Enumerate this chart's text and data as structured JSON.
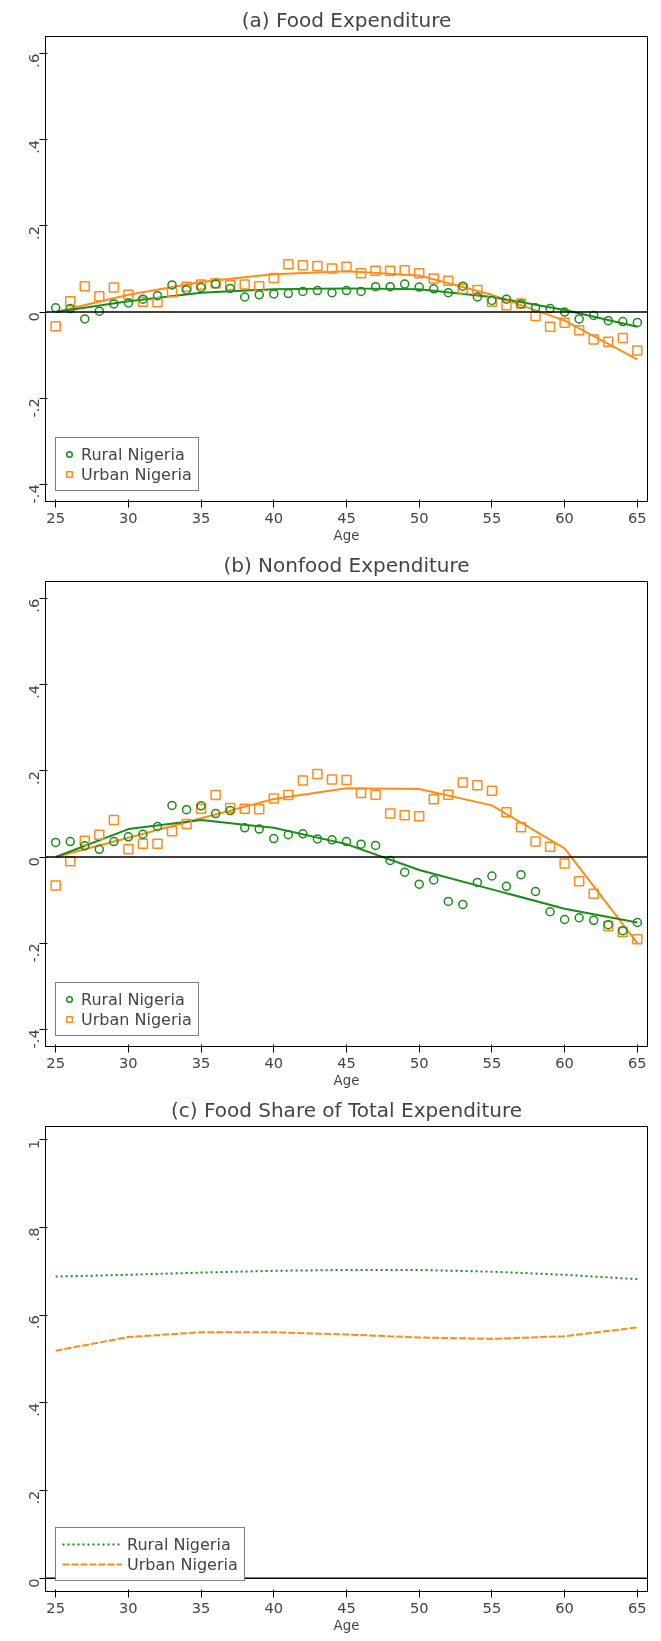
{
  "chart_data": [
    {
      "type": "scatter",
      "title": "(a) Food Expenditure",
      "xlabel": "Age",
      "xlim": [
        24.3,
        65.7
      ],
      "xticks": [
        25,
        30,
        35,
        40,
        45,
        50,
        55,
        60,
        65
      ],
      "ylim": [
        -0.44,
        0.64
      ],
      "yticks": [
        {
          "value": -0.4,
          "label": "-.4"
        },
        {
          "value": -0.2,
          "label": "-.2"
        },
        {
          "value": 0,
          "label": "0"
        },
        {
          "value": 0.2,
          "label": ".2"
        },
        {
          "value": 0.4,
          "label": ".4"
        },
        {
          "value": 0.6,
          "label": ".6"
        }
      ],
      "grid": false,
      "legend": "bottom left",
      "ref_lines": [
        {
          "axis": "y",
          "value": 0,
          "color": "#000000"
        }
      ],
      "x": [
        25,
        26,
        27,
        28,
        29,
        30,
        31,
        32,
        33,
        34,
        35,
        36,
        37,
        38,
        39,
        40,
        41,
        42,
        43,
        44,
        45,
        46,
        47,
        48,
        49,
        50,
        51,
        52,
        53,
        54,
        55,
        56,
        57,
        58,
        59,
        60,
        61,
        62,
        63,
        64,
        65
      ],
      "series": [
        {
          "name": "Rural Nigeria",
          "type": "scatter",
          "marker": "circle",
          "color": "#1a8c1a",
          "values": [
            0.01,
            0.008,
            -0.016,
            0.002,
            0.019,
            0.021,
            0.03,
            0.038,
            0.063,
            0.052,
            0.057,
            0.065,
            0.055,
            0.035,
            0.04,
            0.042,
            0.043,
            0.048,
            0.05,
            0.045,
            0.05,
            0.048,
            0.059,
            0.059,
            0.065,
            0.058,
            0.054,
            0.045,
            0.06,
            0.035,
            0.027,
            0.03,
            0.019,
            0.01,
            0.008,
            0.0,
            -0.016,
            -0.008,
            -0.02,
            -0.022,
            -0.024
          ]
        },
        {
          "name": "Urban Nigeria",
          "type": "scatter",
          "marker": "square",
          "color": "#ff8c1a",
          "values": [
            -0.033,
            0.025,
            0.06,
            0.037,
            0.057,
            0.04,
            0.024,
            0.023,
            0.046,
            0.059,
            0.064,
            0.067,
            0.063,
            0.064,
            0.06,
            0.079,
            0.111,
            0.109,
            0.107,
            0.101,
            0.105,
            0.09,
            0.096,
            0.096,
            0.097,
            0.09,
            0.078,
            0.073,
            0.054,
            0.051,
            0.024,
            0.016,
            0.02,
            -0.009,
            -0.034,
            -0.025,
            -0.042,
            -0.064,
            -0.069,
            -0.06,
            -0.089
          ]
        },
        {
          "type": "line",
          "color": "#1a8c1a",
          "x": [
            25,
            30,
            35,
            40,
            45,
            50,
            55,
            60,
            65
          ],
          "values": [
            0.0,
            0.025,
            0.045,
            0.053,
            0.055,
            0.053,
            0.035,
            0.005,
            -0.034
          ]
        },
        {
          "type": "line",
          "color": "#ff8c1a",
          "x": [
            25,
            30,
            35,
            40,
            45,
            50,
            55,
            60,
            65
          ],
          "values": [
            0.0,
            0.04,
            0.07,
            0.088,
            0.095,
            0.085,
            0.04,
            -0.02,
            -0.11
          ]
        }
      ]
    },
    {
      "type": "scatter",
      "title": "(b) Nonfood Expenditure",
      "xlabel": "Age",
      "xlim": [
        24.3,
        65.7
      ],
      "xticks": [
        25,
        30,
        35,
        40,
        45,
        50,
        55,
        60,
        65
      ],
      "ylim": [
        -0.44,
        0.64
      ],
      "yticks": [
        {
          "value": -0.4,
          "label": "-.4"
        },
        {
          "value": -0.2,
          "label": "-.2"
        },
        {
          "value": 0,
          "label": "0"
        },
        {
          "value": 0.2,
          "label": ".2"
        },
        {
          "value": 0.4,
          "label": ".4"
        },
        {
          "value": 0.6,
          "label": ".6"
        }
      ],
      "grid": false,
      "legend": "bottom left",
      "ref_lines": [
        {
          "axis": "y",
          "value": 0,
          "color": "#000000"
        }
      ],
      "x": [
        25,
        26,
        27,
        28,
        29,
        30,
        31,
        32,
        33,
        34,
        35,
        36,
        37,
        38,
        39,
        40,
        41,
        42,
        43,
        44,
        45,
        46,
        47,
        48,
        49,
        50,
        51,
        52,
        53,
        54,
        55,
        56,
        57,
        58,
        59,
        60,
        61,
        62,
        63,
        64,
        65
      ],
      "series": [
        {
          "name": "Rural Nigeria",
          "type": "scatter",
          "marker": "circle",
          "color": "#1a8c1a",
          "values": [
            0.034,
            0.036,
            0.026,
            0.018,
            0.036,
            0.047,
            0.053,
            0.071,
            0.12,
            0.11,
            0.119,
            0.101,
            0.108,
            0.068,
            0.065,
            0.043,
            0.052,
            0.054,
            0.042,
            0.04,
            0.036,
            0.03,
            0.027,
            -0.008,
            -0.035,
            -0.063,
            -0.053,
            -0.103,
            -0.11,
            -0.059,
            -0.044,
            -0.068,
            -0.041,
            -0.08,
            -0.127,
            -0.145,
            -0.141,
            -0.147,
            -0.157,
            -0.171,
            -0.152
          ]
        },
        {
          "name": "Urban Nigeria",
          "type": "scatter",
          "marker": "square",
          "color": "#ff8c1a",
          "values": [
            -0.066,
            -0.01,
            0.038,
            0.052,
            0.086,
            0.018,
            0.031,
            0.031,
            0.06,
            0.077,
            0.112,
            0.144,
            0.114,
            0.112,
            0.111,
            0.136,
            0.144,
            0.178,
            0.193,
            0.18,
            0.179,
            0.149,
            0.145,
            0.101,
            0.097,
            0.095,
            0.134,
            0.145,
            0.173,
            0.167,
            0.154,
            0.104,
            0.069,
            0.036,
            0.024,
            -0.015,
            -0.056,
            -0.085,
            -0.16,
            -0.174,
            -0.191
          ]
        },
        {
          "type": "line",
          "color": "#1a8c1a",
          "x": [
            25,
            30,
            35,
            40,
            45,
            50,
            55,
            60,
            65
          ],
          "values": [
            0.0,
            0.065,
            0.086,
            0.068,
            0.03,
            -0.03,
            -0.075,
            -0.12,
            -0.152
          ]
        },
        {
          "type": "line",
          "color": "#ff8c1a",
          "x": [
            25,
            30,
            35,
            40,
            45,
            50,
            55,
            60,
            65
          ],
          "values": [
            0.0,
            0.045,
            0.09,
            0.135,
            0.16,
            0.158,
            0.12,
            0.02,
            -0.2
          ]
        }
      ]
    },
    {
      "type": "line",
      "title": "(c) Food Share of Total Expenditure",
      "xlabel": "Age",
      "xlim": [
        24.3,
        65.7
      ],
      "xticks": [
        25,
        30,
        35,
        40,
        45,
        50,
        55,
        60,
        65
      ],
      "ylim": [
        -0.03,
        1.03
      ],
      "yticks": [
        {
          "value": 0,
          "label": "0"
        },
        {
          "value": 0.2,
          "label": ".2"
        },
        {
          "value": 0.4,
          "label": ".4"
        },
        {
          "value": 0.6,
          "label": ".6"
        },
        {
          "value": 0.8,
          "label": ".8"
        },
        1
      ],
      "grid": false,
      "legend": "bottom left",
      "ref_lines": [
        {
          "axis": "y",
          "value": 0,
          "color": "#000000"
        }
      ],
      "x": [
        25,
        30,
        35,
        40,
        45,
        50,
        55,
        60,
        65
      ],
      "series": [
        {
          "name": "Rural Nigeria",
          "line_style": "dotted",
          "color": "#1a8c1a",
          "values": [
            0.688,
            0.692,
            0.697,
            0.701,
            0.703,
            0.703,
            0.699,
            0.692,
            0.682
          ]
        },
        {
          "name": "Urban Nigeria",
          "line_style": "dashed",
          "color": "#ff8c1a",
          "values": [
            0.519,
            0.55,
            0.561,
            0.561,
            0.556,
            0.549,
            0.546,
            0.552,
            0.572
          ]
        }
      ]
    }
  ]
}
